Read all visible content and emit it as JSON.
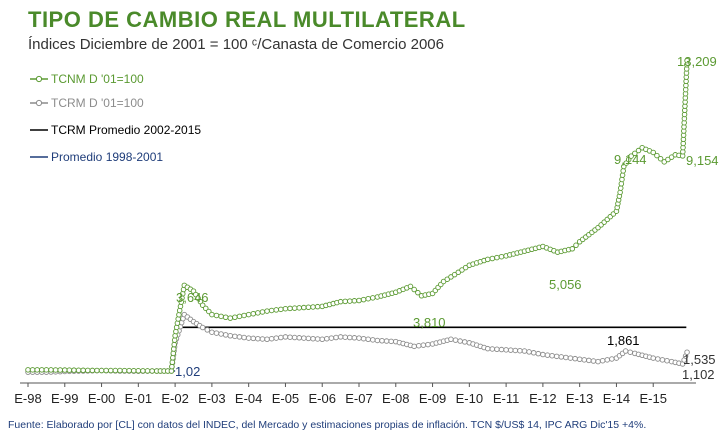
{
  "title": "TIPO DE CAMBIO REAL MULTILATERAL",
  "subtitle": "Índices Diciembre de 2001 = 100 ᶜ/Canasta de Comercio 2006",
  "footer": "Fuente: Elaborado por [CL] con datos del INDEC, del Mercado y estimaciones propias de inflación. TCN $/US$ 14, IPC ARG Dic'15 +4%.",
  "chart_data": {
    "type": "line",
    "x_ticks": [
      "E-98",
      "E-99",
      "E-00",
      "E-01",
      "E-02",
      "E-03",
      "E-04",
      "E-05",
      "E-06",
      "E-07",
      "E-08",
      "E-09",
      "E-10",
      "E-11",
      "E-12",
      "E-13",
      "E-14",
      "E-15"
    ],
    "x_range": [
      1998.0,
      2016.0
    ],
    "legend_position": "top-left",
    "grid": false,
    "series": [
      {
        "name": "TCNM D '01=100",
        "color": "#5b9a32",
        "marker": "circle",
        "points": [
          [
            1998.0,
            0.05
          ],
          [
            1998.5,
            0.05
          ],
          [
            1999.0,
            0.04
          ],
          [
            1999.5,
            0.03
          ],
          [
            2000.0,
            0.02
          ],
          [
            2000.5,
            0.02
          ],
          [
            2001.0,
            0.01
          ],
          [
            2001.5,
            0.0
          ],
          [
            2001.9,
            0.0
          ],
          [
            2002.0,
            1.5
          ],
          [
            2002.25,
            3.646
          ],
          [
            2002.5,
            3.4
          ],
          [
            2002.75,
            2.8
          ],
          [
            2003.0,
            2.4
          ],
          [
            2003.5,
            2.25
          ],
          [
            2004.0,
            2.4
          ],
          [
            2004.5,
            2.55
          ],
          [
            2005.0,
            2.65
          ],
          [
            2005.5,
            2.7
          ],
          [
            2006.0,
            2.75
          ],
          [
            2006.5,
            2.95
          ],
          [
            2007.0,
            3.0
          ],
          [
            2007.5,
            3.15
          ],
          [
            2008.0,
            3.35
          ],
          [
            2008.4,
            3.6
          ],
          [
            2008.7,
            3.2
          ],
          [
            2009.0,
            3.3
          ],
          [
            2009.3,
            3.81
          ],
          [
            2009.6,
            4.1
          ],
          [
            2010.0,
            4.5
          ],
          [
            2010.5,
            4.75
          ],
          [
            2011.0,
            4.9
          ],
          [
            2011.5,
            5.1
          ],
          [
            2012.0,
            5.3
          ],
          [
            2012.4,
            5.056
          ],
          [
            2012.8,
            5.2
          ],
          [
            2013.0,
            5.5
          ],
          [
            2013.5,
            6.1
          ],
          [
            2014.0,
            6.8
          ],
          [
            2014.1,
            7.6
          ],
          [
            2014.2,
            8.7
          ],
          [
            2014.4,
            9.144
          ],
          [
            2014.7,
            9.5
          ],
          [
            2015.0,
            9.3
          ],
          [
            2015.3,
            8.9
          ],
          [
            2015.6,
            9.2
          ],
          [
            2015.8,
            9.154
          ],
          [
            2015.92,
            13.209
          ]
        ]
      },
      {
        "name": "TCRM D '01=100",
        "color": "#8c8c8c",
        "marker": "circle",
        "points": [
          [
            1998.0,
            -0.05
          ],
          [
            1998.5,
            -0.05
          ],
          [
            1999.0,
            -0.02
          ],
          [
            1999.5,
            0.0
          ],
          [
            2000.0,
            0.02
          ],
          [
            2000.5,
            0.0
          ],
          [
            2001.0,
            -0.01
          ],
          [
            2001.5,
            0.0
          ],
          [
            2001.9,
            0.0
          ],
          [
            2002.0,
            1.2
          ],
          [
            2002.25,
            2.4
          ],
          [
            2002.5,
            2.1
          ],
          [
            2002.75,
            1.85
          ],
          [
            2003.0,
            1.65
          ],
          [
            2003.5,
            1.5
          ],
          [
            2004.0,
            1.4
          ],
          [
            2004.5,
            1.35
          ],
          [
            2005.0,
            1.45
          ],
          [
            2005.5,
            1.4
          ],
          [
            2006.0,
            1.35
          ],
          [
            2006.5,
            1.45
          ],
          [
            2007.0,
            1.4
          ],
          [
            2007.5,
            1.3
          ],
          [
            2008.0,
            1.25
          ],
          [
            2008.5,
            1.05
          ],
          [
            2009.0,
            1.15
          ],
          [
            2009.5,
            1.35
          ],
          [
            2010.0,
            1.2
          ],
          [
            2010.5,
            0.95
          ],
          [
            2011.0,
            0.9
          ],
          [
            2011.5,
            0.85
          ],
          [
            2012.0,
            0.7
          ],
          [
            2012.5,
            0.6
          ],
          [
            2013.0,
            0.5
          ],
          [
            2013.5,
            0.4
          ],
          [
            2014.0,
            0.55
          ],
          [
            2014.25,
            0.85
          ],
          [
            2014.5,
            0.75
          ],
          [
            2015.0,
            0.55
          ],
          [
            2015.5,
            0.4
          ],
          [
            2015.8,
            0.3
          ],
          [
            2015.92,
            0.8
          ]
        ]
      },
      {
        "name": "TCRM Promedio 2002-2015",
        "color": "#000000",
        "marker": "none",
        "points": [
          [
            2002.0,
            1.861
          ],
          [
            2015.9,
            1.861
          ]
        ]
      },
      {
        "name": "Promedio 1998-2001",
        "color": "#1f3d7a",
        "marker": "none",
        "points": [
          [
            1998.0,
            0.0
          ],
          [
            2002.0,
            0.0
          ]
        ]
      }
    ],
    "annotations": [
      {
        "text": "13,209",
        "color": "#5b9a32"
      },
      {
        "text": "9,144",
        "color": "#5b9a32"
      },
      {
        "text": "9,154",
        "color": "#5b9a32"
      },
      {
        "text": "5,056",
        "color": "#5b9a32"
      },
      {
        "text": "3,810",
        "color": "#5b9a32"
      },
      {
        "text": "3,646",
        "color": "#5b9a32"
      },
      {
        "text": "1,861",
        "color": "#000000"
      },
      {
        "text": "1,535",
        "color": "#333333"
      },
      {
        "text": "1,102",
        "color": "#333333"
      },
      {
        "text": "1,02",
        "color": "#1f3d7a"
      }
    ]
  }
}
